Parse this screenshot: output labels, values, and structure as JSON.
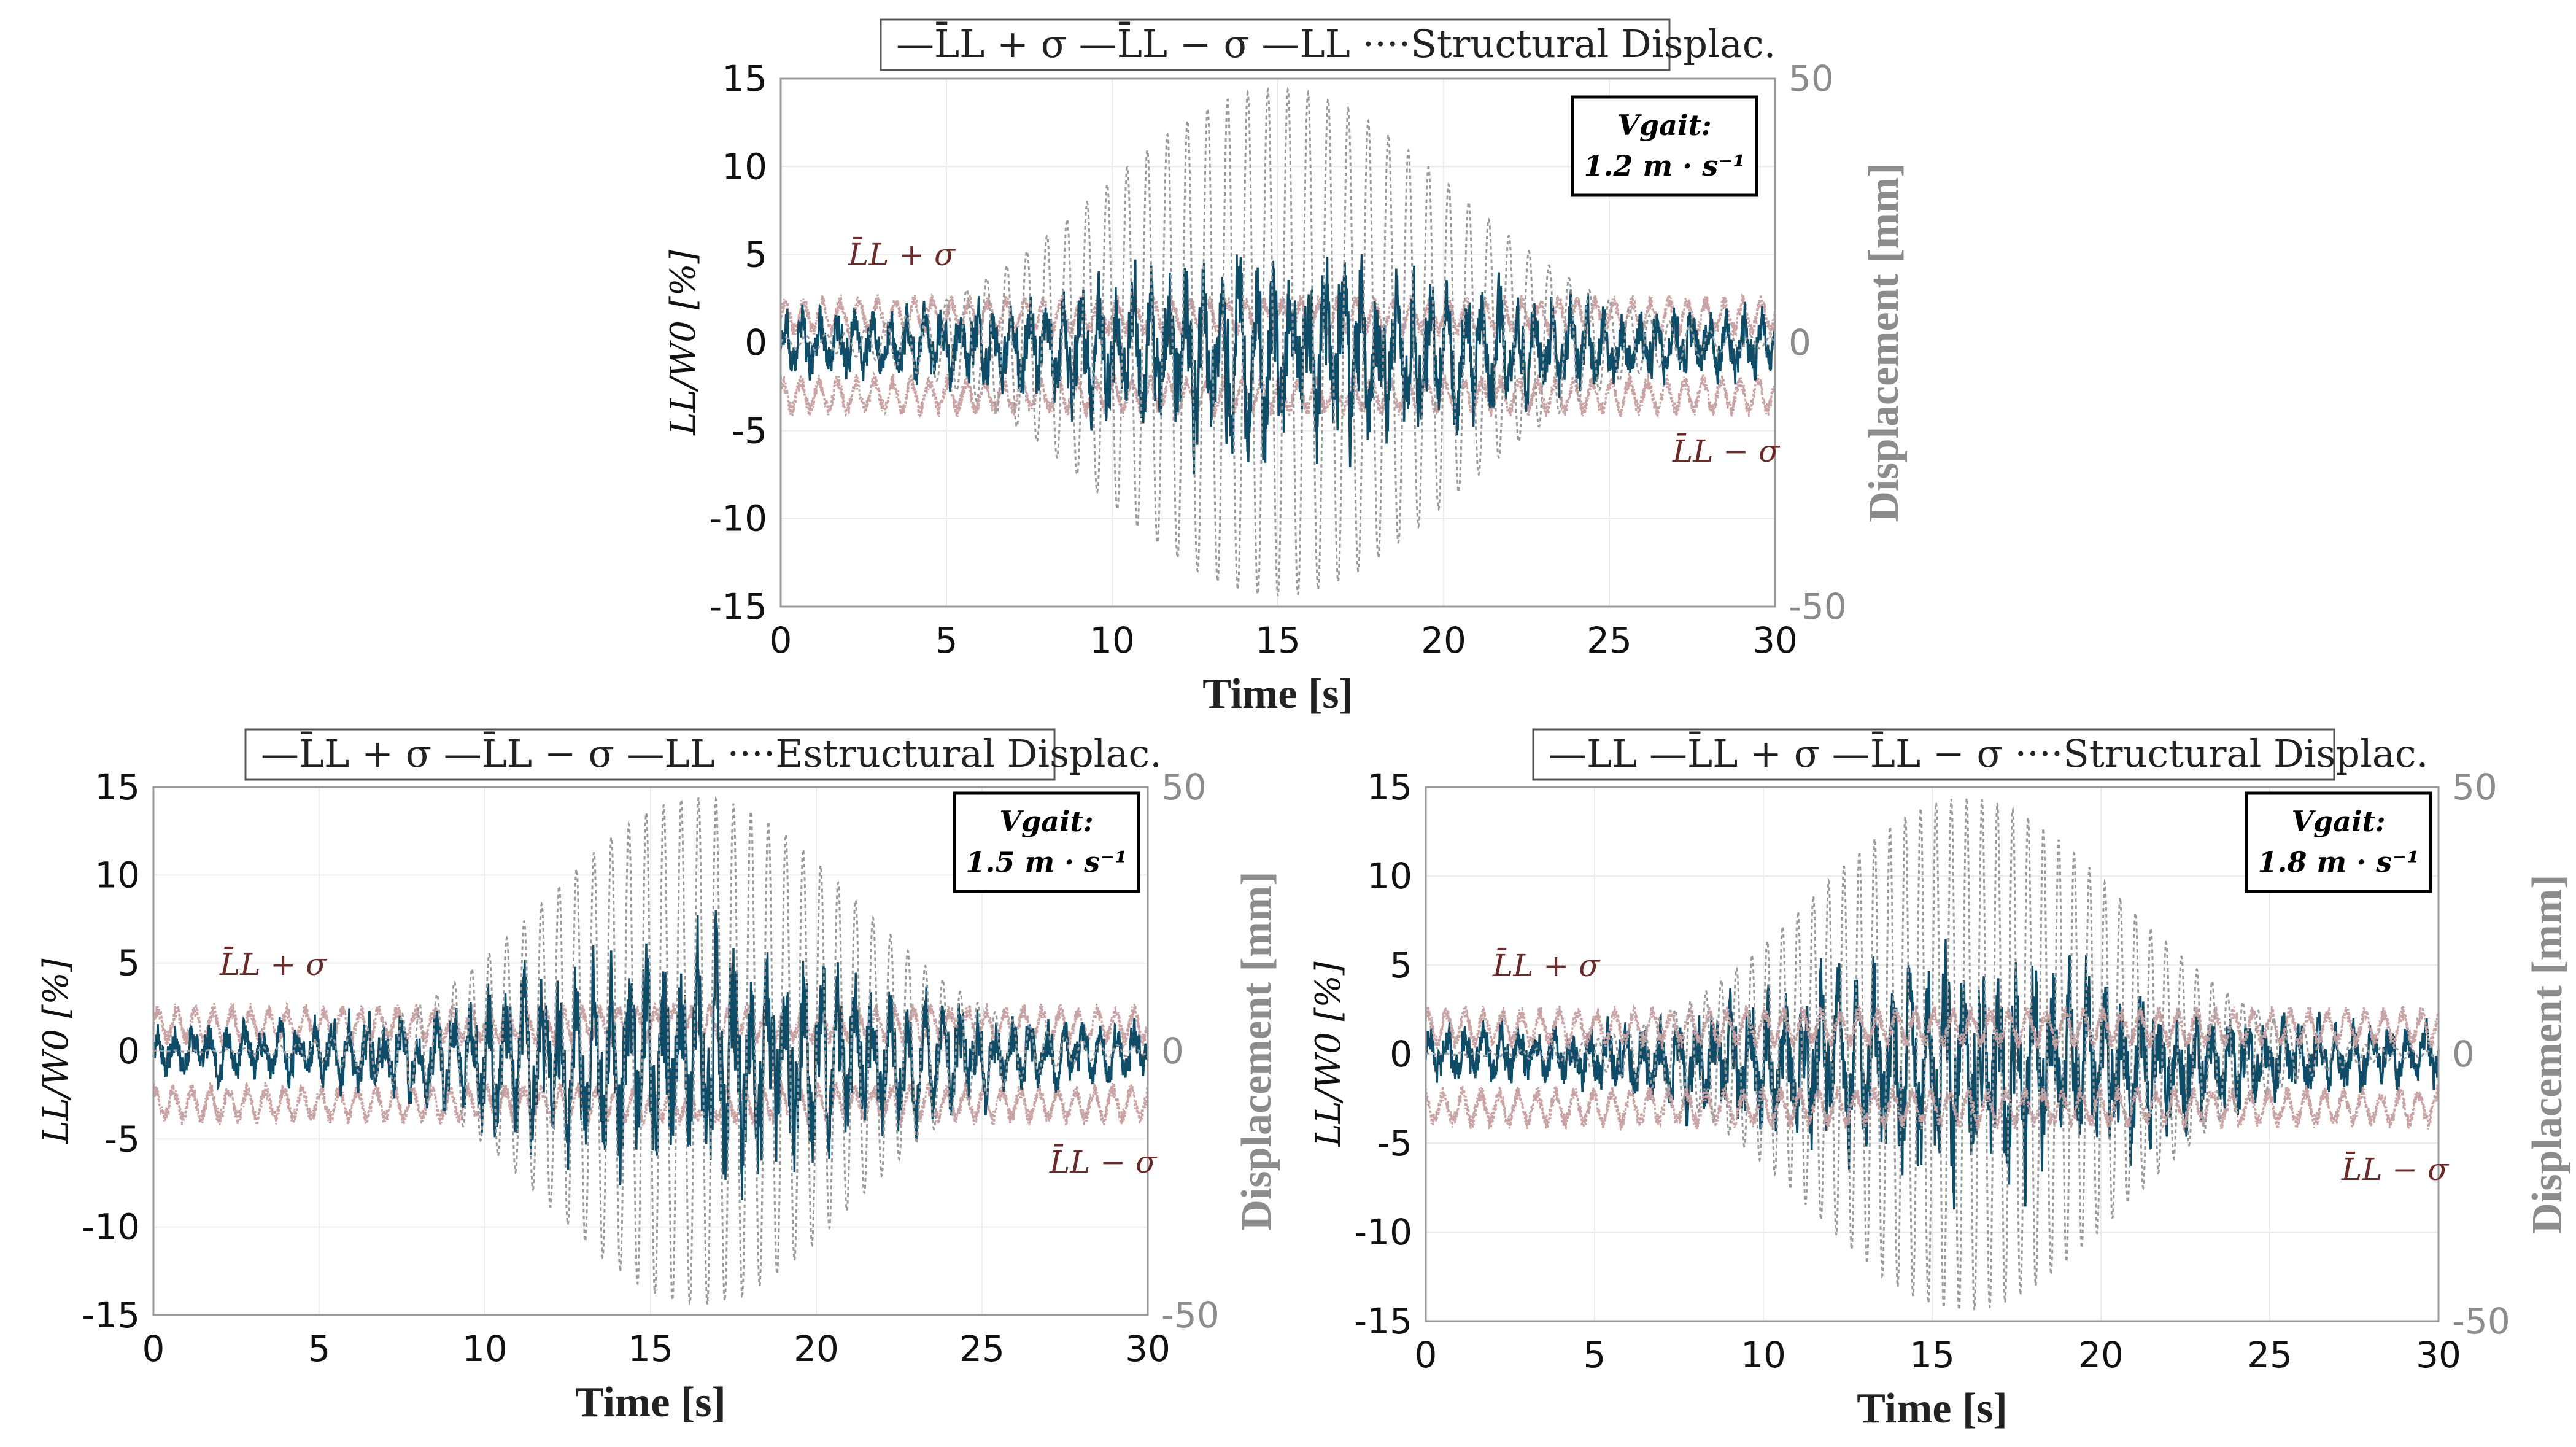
{
  "chart_data": [
    {
      "type": "line",
      "panel": "top",
      "legend": [
        "L̄_L + σ",
        "L̄_L − σ",
        "L_L",
        "Structural Displac."
      ],
      "legend_text": "—L̄L + σ —L̄L − σ —LL ····Structural Displac.",
      "xlabel": "Time [s]",
      "ylabel_left": "L_L / W_0 [%]",
      "ylabel_left_text": "LL/W0 [%]",
      "ylabel_right": "Displacement [mm]",
      "xlim": [
        0,
        30
      ],
      "ylim_left": [
        -15,
        15
      ],
      "ylim_right": [
        -50,
        50
      ],
      "xticks": [
        "0",
        "5",
        "10",
        "15",
        "20",
        "25",
        "30"
      ],
      "yticks_left": [
        "15",
        "10",
        "5",
        "0",
        "-5",
        "-10",
        "-15"
      ],
      "yticks_right": [
        "50",
        "0",
        "-50"
      ],
      "annotation_upper": "L̄L + σ",
      "annotation_lower": "L̄L − σ",
      "speed_label": "Vgait:",
      "speed_value": "1.2 m · s⁻¹",
      "series": [
        {
          "name": "L̄_L + σ",
          "mean": 1.5,
          "amplitude": 1.0,
          "color": "#c9a3a3"
        },
        {
          "name": "L̄_L − σ",
          "mean": -3.0,
          "amplitude": 1.0,
          "color": "#c9a3a3"
        },
        {
          "name": "L_L",
          "amplitude_base": 1.8,
          "amplitude_peak": 5.5,
          "peak_time": 15,
          "color": "#0f4c68"
        },
        {
          "name": "Structural Displac.",
          "peak_amplitude_mm": 48,
          "peak_time": 15,
          "frequency_hz": 1.65,
          "width_s": 7.5,
          "color": "#9a9a9a"
        }
      ]
    },
    {
      "type": "line",
      "panel": "bottom-left",
      "legend": [
        "L̄_L + σ",
        "L̄_L − σ",
        "L_L",
        "Estructural Displac."
      ],
      "legend_text": "—L̄L + σ —L̄L − σ —LL ····Estructural Displac.",
      "xlabel": "Time [s]",
      "ylabel_left": "L_L / W_0 [%]",
      "ylabel_left_text": "LL/W0 [%]",
      "ylabel_right": "Displacement [mm]",
      "xlim": [
        0,
        30
      ],
      "ylim_left": [
        -15,
        15
      ],
      "ylim_right": [
        -50,
        50
      ],
      "xticks": [
        "0",
        "5",
        "10",
        "15",
        "20",
        "25",
        "30"
      ],
      "yticks_left": [
        "15",
        "10",
        "5",
        "0",
        "-5",
        "-10",
        "-15"
      ],
      "yticks_right": [
        "50",
        "0",
        "-50"
      ],
      "annotation_upper": "L̄L + σ",
      "annotation_lower": "L̄L − σ",
      "speed_label": "Vgait:",
      "speed_value": "1.5 m · s⁻¹",
      "series": [
        {
          "name": "L̄_L + σ",
          "mean": 1.5,
          "amplitude": 1.0,
          "color": "#c9a3a3"
        },
        {
          "name": "L̄_L − σ",
          "mean": -3.0,
          "amplitude": 1.0,
          "color": "#c9a3a3"
        },
        {
          "name": "L_L",
          "amplitude_base": 1.5,
          "amplitude_peak": 6.5,
          "peak_time": 16.5,
          "color": "#0f4c68"
        },
        {
          "name": "Estructural Displac.",
          "peak_amplitude_mm": 48,
          "peak_time": 16.5,
          "frequency_hz": 1.9,
          "width_s": 6.5,
          "color": "#9a9a9a"
        }
      ]
    },
    {
      "type": "line",
      "panel": "bottom-right",
      "legend": [
        "L_L",
        "L̄_L + σ",
        "L̄_L − σ",
        "Structural Displac."
      ],
      "legend_text": "—LL —L̄L + σ —L̄L − σ ····Structural Displac.",
      "xlabel": "Time [s]",
      "ylabel_left": "L_L / W_0 [%]",
      "ylabel_left_text": "LL/W0 [%]",
      "ylabel_right": "Displacement [mm]",
      "xlim": [
        0,
        30
      ],
      "ylim_left": [
        -15,
        15
      ],
      "ylim_right": [
        -50,
        50
      ],
      "xticks": [
        "0",
        "5",
        "10",
        "15",
        "20",
        "25",
        "30"
      ],
      "yticks_left": [
        "15",
        "10",
        "5",
        "0",
        "-5",
        "-10",
        "-15"
      ],
      "yticks_right": [
        "50",
        "0",
        "-50"
      ],
      "annotation_upper": "L̄L + σ",
      "annotation_lower": "L̄L − σ",
      "speed_label": "Vgait:",
      "speed_value": "1.8 m · s⁻¹",
      "series": [
        {
          "name": "L_L",
          "amplitude_base": 1.6,
          "amplitude_peak": 6.0,
          "peak_time": 16,
          "color": "#0f4c68"
        },
        {
          "name": "L̄_L + σ",
          "mean": 1.5,
          "amplitude": 1.0,
          "color": "#c9a3a3"
        },
        {
          "name": "L̄_L − σ",
          "mean": -3.0,
          "amplitude": 1.0,
          "color": "#c9a3a3"
        },
        {
          "name": "Structural Displac.",
          "peak_amplitude_mm": 48,
          "peak_time": 16,
          "frequency_hz": 2.2,
          "width_s": 6.5,
          "color": "#9a9a9a"
        }
      ]
    }
  ]
}
